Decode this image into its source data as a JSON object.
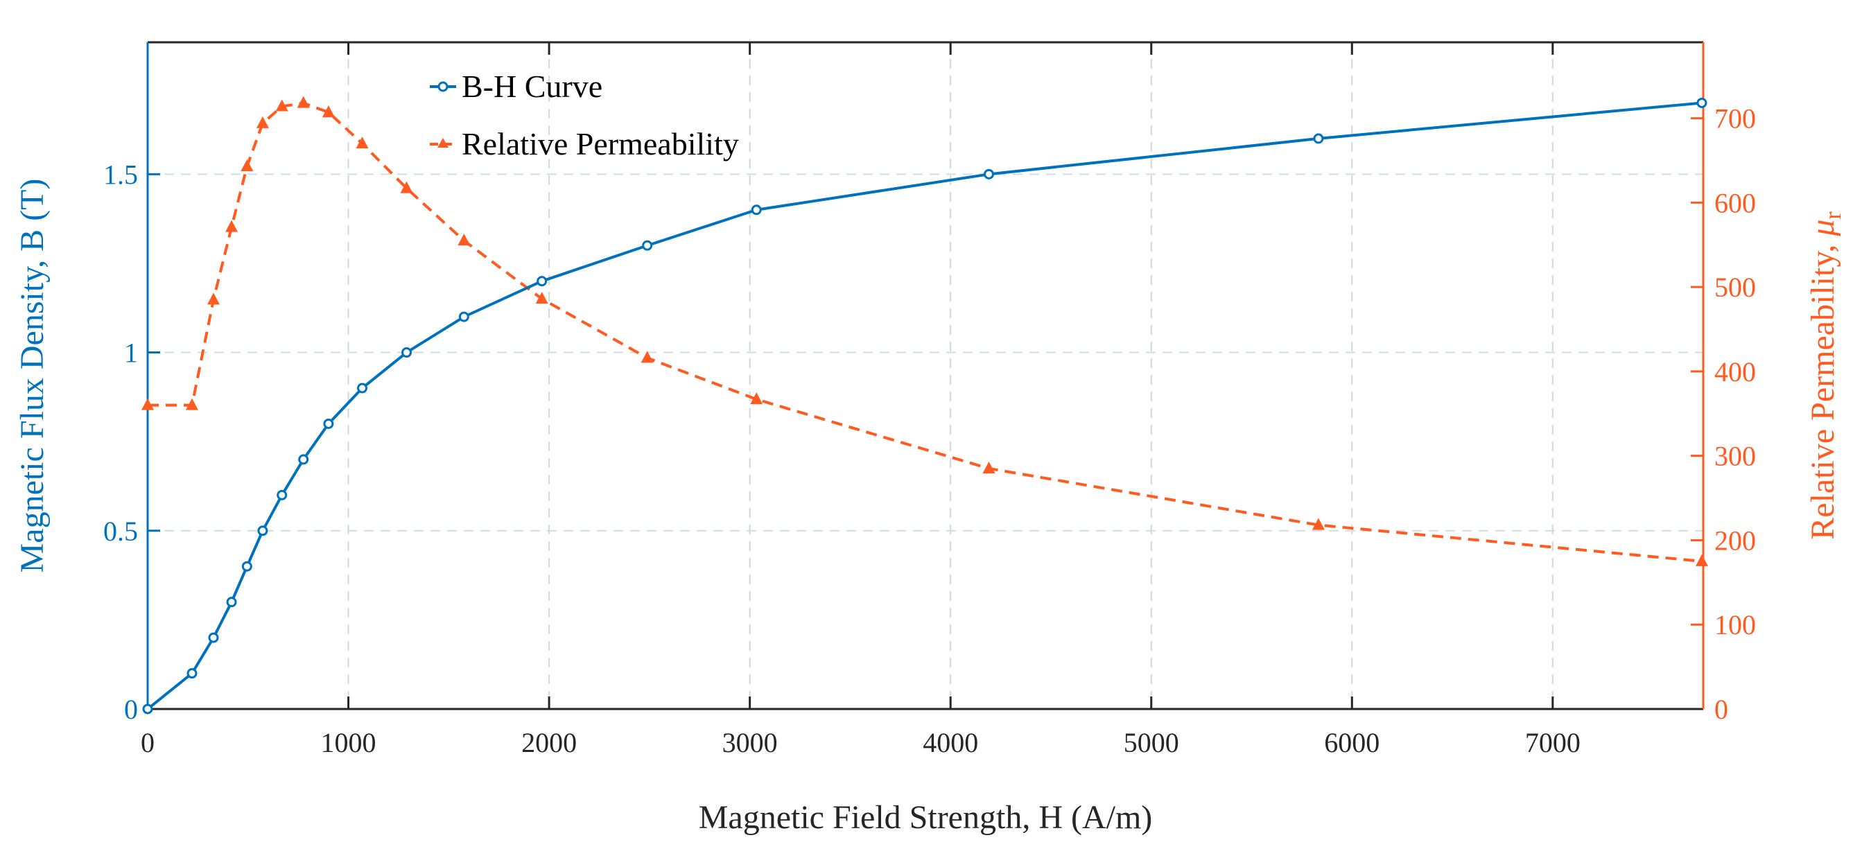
{
  "chart_data": {
    "type": "line",
    "title": "",
    "xlabel": "Magnetic Field Strength, H (A/m)",
    "ylabel": "Magnetic Flux Density, B (T)",
    "ylabel_right": "Relative Permeability, ",
    "ylabel_right_symbol": "μ",
    "ylabel_right_subscript": "r",
    "xlim": [
      0,
      7750
    ],
    "ylim": [
      0,
      1.87
    ],
    "ylim_right": [
      0,
      790
    ],
    "xticks": [
      0,
      1000,
      2000,
      3000,
      4000,
      5000,
      6000,
      7000
    ],
    "xtick_labels": [
      "0",
      "1000",
      "2000",
      "3000",
      "4000",
      "5000",
      "6000",
      "7000"
    ],
    "yticks": [
      0,
      0.5,
      1,
      1.5
    ],
    "ytick_labels": [
      "0",
      "0.5",
      "1",
      "1.5"
    ],
    "yticks_right": [
      0,
      100,
      200,
      300,
      400,
      500,
      600,
      700
    ],
    "ytick_labels_right": [
      "0",
      "100",
      "200",
      "300",
      "400",
      "500",
      "600",
      "700"
    ],
    "grid": true,
    "legend_position": "top-left",
    "colors": {
      "bh": "#0072BD",
      "mu": "#FF5A1F",
      "axis": "#262626",
      "grid": "#d0dde8"
    },
    "series": [
      {
        "name": "B-H Curve",
        "axis": "left",
        "style": "solid-circle",
        "x": [
          0,
          221,
          328,
          418,
          495,
          573,
          669,
          776,
          901,
          1069,
          1290,
          1576,
          1964,
          2489,
          3033,
          4191,
          5833,
          7743
        ],
        "y": [
          0,
          0.1,
          0.2,
          0.3,
          0.4,
          0.5,
          0.6,
          0.7,
          0.8,
          0.9,
          1.0,
          1.1,
          1.2,
          1.3,
          1.4,
          1.5,
          1.6,
          1.7
        ]
      },
      {
        "name": "Relative Permeability",
        "axis": "right",
        "style": "dashed-triangle",
        "x": [
          0,
          221,
          328,
          418,
          495,
          573,
          669,
          776,
          901,
          1069,
          1290,
          1576,
          1964,
          2489,
          3033,
          4191,
          5833,
          7743
        ],
        "y": [
          360,
          360,
          485,
          571,
          643,
          694,
          714,
          718,
          707,
          670,
          617,
          555,
          486,
          416,
          367,
          285,
          218,
          175
        ]
      }
    ]
  }
}
